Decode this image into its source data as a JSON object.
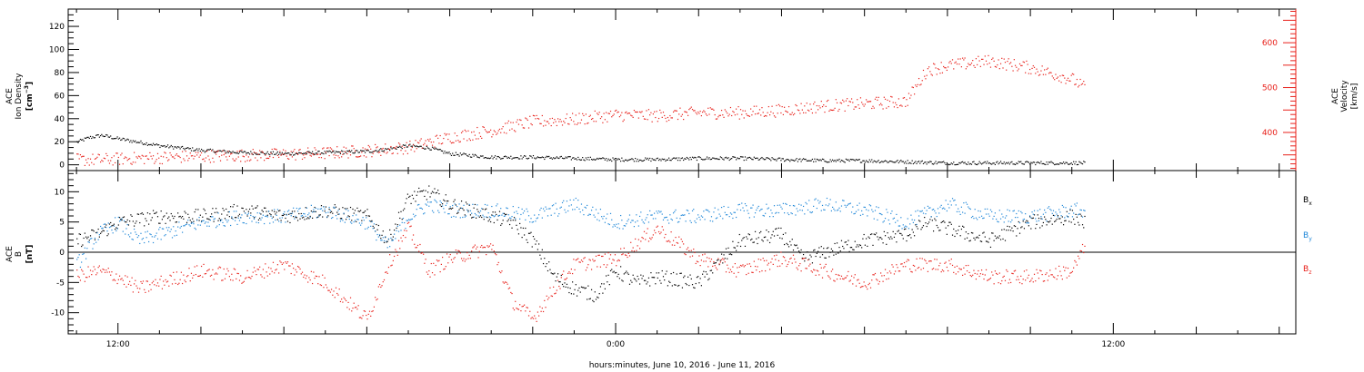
{
  "chart_data": [
    {
      "type": "scatter",
      "panel": "top",
      "left_label_lines": [
        "ACE",
        "Ion Density"
      ],
      "left_unit": "[cm",
      "left_unit_sup": "−3",
      "left_unit_end": "]",
      "right_label_lines": [
        "ACE",
        "Velocity",
        "[km/s]"
      ],
      "ylim_left": [
        -5,
        135
      ],
      "ylim_right": [
        315,
        675
      ],
      "left_ticks": [
        0,
        20,
        40,
        60,
        80,
        100,
        120
      ],
      "right_ticks": [
        400,
        500,
        600
      ],
      "colors": {
        "density": "#000000",
        "velocity": "#e8201a"
      },
      "series": [
        {
          "axis": "left",
          "color": "#000000",
          "x": [
            11.0,
            11.3,
            11.6,
            12.0,
            12.5,
            13.0,
            14.0,
            15.0,
            16.0,
            17.0,
            18.0,
            18.5,
            19.0,
            19.5,
            20.0,
            21.0,
            22.0,
            23.0,
            24.0,
            25.0,
            26.0,
            27.0,
            28.0,
            29.0,
            30.0,
            31.0,
            32.0,
            33.0,
            34.0,
            35.0,
            35.3
          ],
          "y": [
            20,
            24,
            26,
            23,
            20,
            17,
            13,
            11,
            10,
            11,
            12,
            14,
            17,
            15,
            10,
            7,
            7,
            6,
            5,
            5,
            6,
            6,
            5,
            4,
            4,
            3,
            2,
            2,
            2,
            2,
            2
          ]
        },
        {
          "axis": "right",
          "color": "#e8201a",
          "x": [
            11.0,
            11.5,
            12.0,
            13.0,
            14.0,
            15.0,
            16.0,
            17.0,
            18.0,
            19.0,
            20.0,
            21.0,
            22.0,
            23.0,
            24.0,
            25.0,
            26.0,
            27.0,
            28.0,
            29.0,
            30.0,
            31.0,
            31.5,
            32.0,
            33.0,
            34.0,
            35.0,
            35.3
          ],
          "y": [
            340,
            340,
            342,
            345,
            348,
            350,
            352,
            355,
            360,
            368,
            390,
            405,
            425,
            430,
            440,
            438,
            445,
            445,
            450,
            460,
            465,
            470,
            540,
            550,
            560,
            545,
            520,
            500
          ]
        }
      ]
    },
    {
      "type": "scatter",
      "panel": "bottom",
      "left_label_lines": [
        "ACE",
        "B"
      ],
      "left_unit": "[nT]",
      "ylim": [
        -13.5,
        13.5
      ],
      "ticks": [
        -10,
        -5,
        0,
        5,
        10
      ],
      "series": [
        {
          "name": "B",
          "sub": "x",
          "color": "#000000",
          "x": [
            11.0,
            11.5,
            12.0,
            13.0,
            14.0,
            15.0,
            16.0,
            17.0,
            18.0,
            18.5,
            19.0,
            19.5,
            20.0,
            21.0,
            21.5,
            22.0,
            22.5,
            23.0,
            23.5,
            24.0,
            24.5,
            25.0,
            26.0,
            27.0,
            28.0,
            28.5,
            29.0,
            30.0,
            31.0,
            31.5,
            32.0,
            33.0,
            34.0,
            35.0,
            35.3
          ],
          "y": [
            2,
            3,
            5,
            6,
            6,
            7,
            6,
            7,
            6,
            2,
            9,
            10,
            8,
            6,
            5,
            2,
            -4,
            -6,
            -7,
            -3,
            -5,
            -4,
            -5,
            2,
            3,
            -1,
            0,
            2,
            3,
            5,
            4,
            2,
            5,
            6,
            5
          ]
        },
        {
          "name": "B",
          "sub": "y",
          "color": "#1f87d8",
          "x": [
            11.0,
            11.5,
            12.0,
            12.5,
            13.0,
            14.0,
            15.0,
            16.0,
            17.0,
            18.0,
            18.5,
            19.0,
            19.5,
            20.0,
            21.0,
            22.0,
            23.0,
            24.0,
            25.0,
            26.0,
            27.0,
            28.0,
            29.0,
            30.0,
            31.0,
            32.0,
            33.0,
            34.0,
            35.0,
            35.3
          ],
          "y": [
            -2,
            3,
            5,
            2,
            3,
            5,
            6,
            6,
            7,
            5,
            1,
            6,
            8,
            7,
            7,
            6,
            8,
            5,
            6,
            6,
            7,
            7,
            8,
            7,
            5,
            8,
            6,
            6,
            7,
            7
          ]
        },
        {
          "name": "B",
          "sub": "z",
          "color": "#e8201a",
          "x": [
            11.0,
            11.5,
            12.0,
            12.5,
            13.0,
            14.0,
            15.0,
            16.0,
            17.0,
            17.5,
            18.0,
            18.5,
            19.0,
            19.5,
            20.0,
            21.0,
            21.5,
            22.0,
            22.5,
            23.0,
            24.0,
            25.0,
            26.0,
            27.0,
            28.0,
            29.0,
            30.0,
            31.0,
            32.0,
            33.0,
            34.0,
            35.0,
            35.3
          ],
          "y": [
            -4,
            -3,
            -4,
            -6,
            -5,
            -3,
            -4,
            -2,
            -5,
            -8,
            -11,
            -2,
            4,
            -3,
            -1,
            1,
            -8,
            -11,
            -6,
            -2,
            -1,
            4,
            -1,
            -3,
            -1,
            -3,
            -5,
            -2,
            -2,
            -4,
            -4,
            -3,
            1
          ]
        }
      ]
    }
  ],
  "x_axis": {
    "label": "hours:minutes, June 10, 2016 - June 11, 2016",
    "range_hours": [
      10.8,
      40.4
    ],
    "tick_labels": [
      "12:00",
      "0:00",
      "12:00"
    ],
    "tick_hours": [
      12,
      24,
      36
    ]
  },
  "legend": {
    "Bx": {
      "base": "B",
      "sub": "x"
    },
    "By": {
      "base": "B",
      "sub": "y"
    },
    "Bz": {
      "base": "B",
      "sub": "z"
    }
  }
}
